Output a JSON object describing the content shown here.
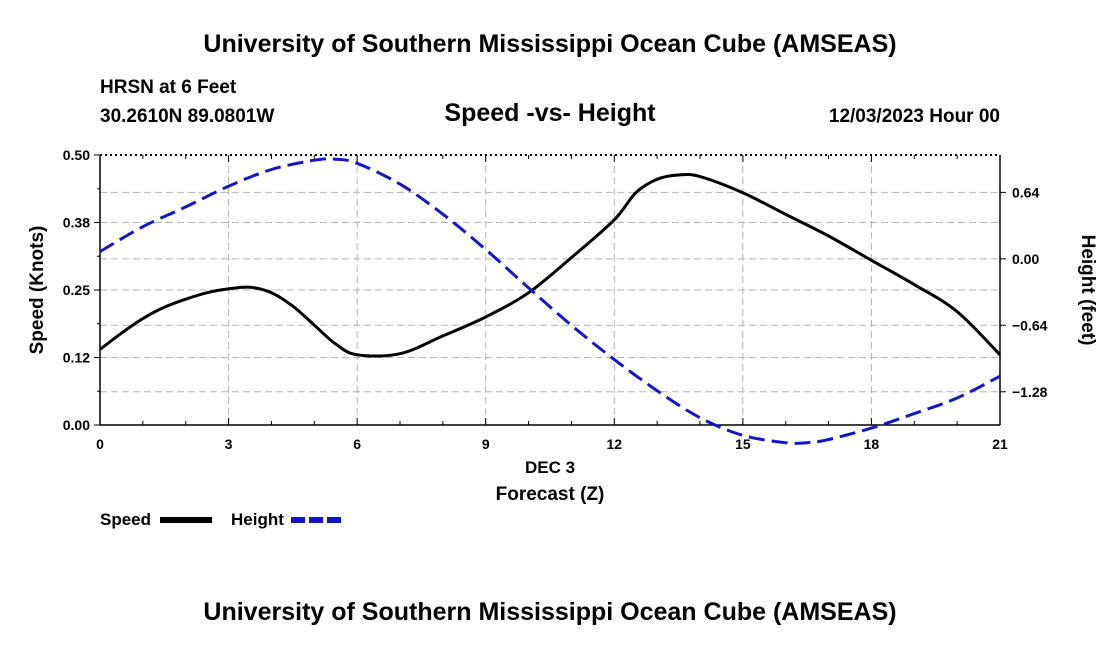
{
  "header": {
    "title": "University of Southern Mississippi Ocean Cube (AMSEAS)",
    "station": "HRSN at 6 Feet",
    "coords": "30.2610N  89.0801W",
    "subtitle": "Speed -vs- Height",
    "datetime": "12/03/2023 Hour 00"
  },
  "footer": {
    "title": "University of Southern Mississippi Ocean Cube (AMSEAS)"
  },
  "legend": {
    "speed": "Speed",
    "height": "Height"
  },
  "colors": {
    "speed": "#000000",
    "height": "#1515c8",
    "grid": "#b4b4b4"
  },
  "chart_data": {
    "type": "line",
    "title": "Speed -vs- Height",
    "xlabel": "Forecast (Z)",
    "xlabel_date": "DEC 3",
    "ylabel": "Speed (Knots)",
    "y2label": "Height (feet)",
    "xlim": [
      0,
      21
    ],
    "ylim": [
      0,
      0.5
    ],
    "y2lim": [
      -1.6,
      1.0
    ],
    "x_ticks": [
      0,
      3,
      6,
      9,
      12,
      15,
      18,
      21
    ],
    "x_tick_labels": [
      "0",
      "3",
      "6",
      "9",
      "12",
      "15",
      "18",
      "21"
    ],
    "y_ticks": [
      0,
      0.125,
      0.25,
      0.375,
      0.5
    ],
    "y_tick_labels": [
      "0.00",
      "0.12",
      "0.25",
      "0.38",
      "0.50"
    ],
    "y2_ticks": [
      -1.28,
      -0.64,
      0,
      0.64
    ],
    "y2_tick_labels": [
      "−1.28",
      "−0.64",
      "0.00",
      "0.64"
    ],
    "grid": true,
    "series": [
      {
        "name": "Speed",
        "axis": "left",
        "style": "solid",
        "x": [
          0,
          0.5,
          1,
          1.5,
          2,
          2.5,
          3,
          3.5,
          4,
          4.5,
          5,
          5.5,
          6,
          7,
          8,
          9,
          10,
          11,
          12,
          12.5,
          13,
          13.5,
          14,
          15,
          16,
          17,
          18,
          19,
          20,
          21
        ],
        "values": [
          0.14,
          0.17,
          0.197,
          0.218,
          0.233,
          0.245,
          0.252,
          0.255,
          0.245,
          0.22,
          0.185,
          0.15,
          0.13,
          0.132,
          0.165,
          0.2,
          0.245,
          0.31,
          0.38,
          0.43,
          0.455,
          0.463,
          0.46,
          0.43,
          0.39,
          0.35,
          0.305,
          0.26,
          0.21,
          0.13
        ]
      },
      {
        "name": "Height",
        "axis": "right",
        "style": "dashed",
        "x": [
          0,
          1,
          2,
          3,
          4,
          5,
          5.5,
          6,
          7,
          8,
          9,
          10,
          11,
          12,
          13,
          14,
          15,
          16,
          16.5,
          17,
          18,
          19,
          20,
          21
        ],
        "values": [
          0.07,
          0.31,
          0.5,
          0.7,
          0.86,
          0.95,
          0.96,
          0.92,
          0.72,
          0.43,
          0.09,
          -0.28,
          -0.64,
          -0.97,
          -1.27,
          -1.53,
          -1.7,
          -1.77,
          -1.77,
          -1.74,
          -1.63,
          -1.49,
          -1.34,
          -1.13
        ]
      }
    ]
  }
}
